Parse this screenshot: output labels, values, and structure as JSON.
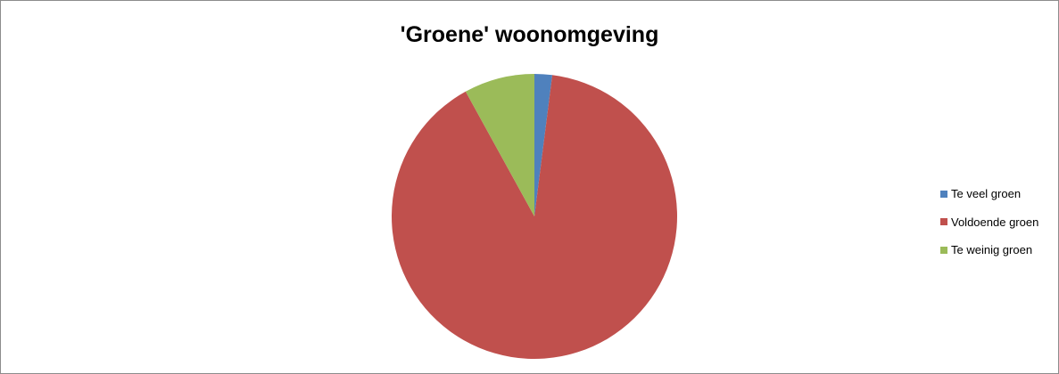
{
  "chart_data": {
    "type": "pie",
    "title": "'Groene' woonomgeving",
    "categories": [
      "Te veel groen",
      "Voldoende groen",
      "Te weinig groen"
    ],
    "values": [
      2,
      90,
      8
    ],
    "colors": [
      "#4f81bd",
      "#c0504d",
      "#9bbb59"
    ],
    "legend_position": "right",
    "data_labels": false
  }
}
